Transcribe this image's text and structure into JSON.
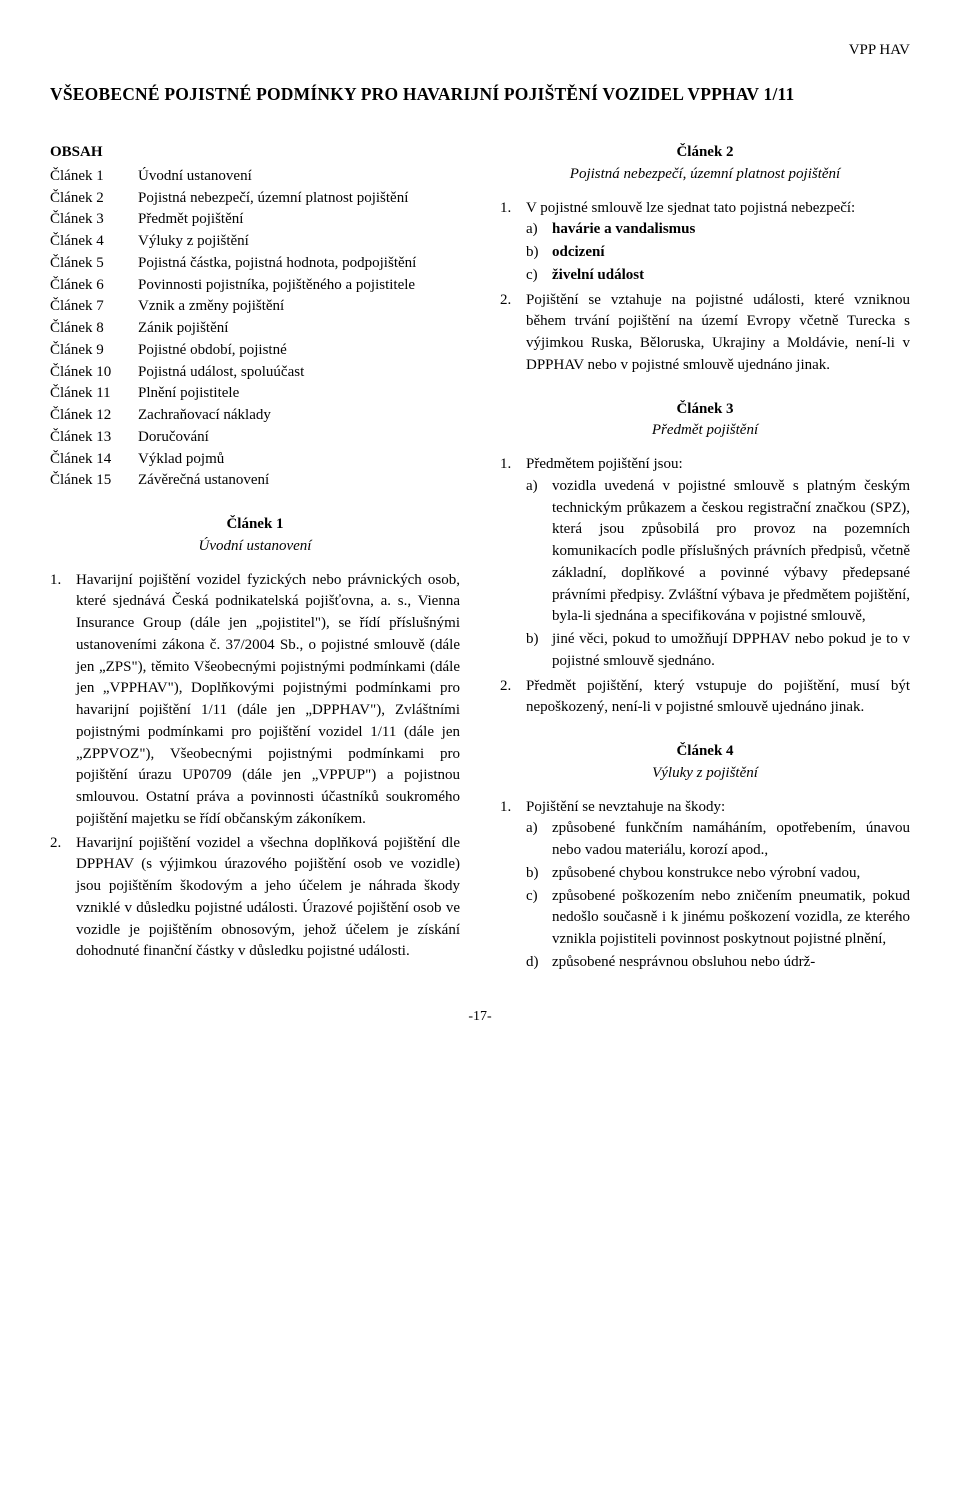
{
  "header": {
    "code": "VPP HAV"
  },
  "title": "VŠEOBECNÉ POJISTNÉ PODMÍNKY PRO HAVARIJNÍ POJIŠTĚNÍ VOZIDEL VPPHAV 1/11",
  "obsah": {
    "heading": "OBSAH",
    "items": [
      {
        "label": "Článek 1",
        "text": "Úvodní ustanovení"
      },
      {
        "label": "Článek 2",
        "text": "Pojistná nebezpečí, územní platnost pojištění"
      },
      {
        "label": "Článek 3",
        "text": "Předmět pojištění"
      },
      {
        "label": "Článek 4",
        "text": "Výluky z pojištění"
      },
      {
        "label": "Článek 5",
        "text": "Pojistná částka, pojistná hodnota, podpojištění"
      },
      {
        "label": "Článek 6",
        "text": "Povinnosti pojistníka, pojištěného a pojistitele"
      },
      {
        "label": "Článek 7",
        "text": "Vznik a změny pojištění"
      },
      {
        "label": "Článek 8",
        "text": "Zánik pojištění"
      },
      {
        "label": "Článek 9",
        "text": "Pojistné období, pojistné"
      },
      {
        "label": "Článek 10",
        "text": "Pojistná událost, spoluúčast"
      },
      {
        "label": "Článek 11",
        "text": "Plnění pojistitele"
      },
      {
        "label": "Článek 12",
        "text": "Zachraňovací náklady"
      },
      {
        "label": "Článek 13",
        "text": "Doručování"
      },
      {
        "label": "Článek 14",
        "text": "Výklad pojmů"
      },
      {
        "label": "Článek 15",
        "text": "Závěrečná ustanovení"
      }
    ]
  },
  "art1": {
    "heading": "Článek 1",
    "sub": "Úvodní ustanovení",
    "p1": {
      "num": "1.",
      "text": "Havarijní pojištění vozidel fyzických nebo právnických osob, které sjednává Česká podnikatelská pojišťovna, a. s., Vienna Insurance Group (dále jen „pojistitel\"), se řídí příslušnými ustanoveními zákona č. 37/2004 Sb., o pojistné smlouvě (dále jen „ZPS\"), těmito Všeobecnými pojistnými podmínkami (dále jen „VPPHAV\"), Doplňkovými pojistnými podmínkami pro havarijní pojištění 1/11 (dále jen „DPPHAV\"), Zvláštními pojistnými podmínkami pro pojištění vozidel 1/11 (dále jen „ZPPVOZ\"), Všeobecnými pojistnými podmínkami pro pojištění úrazu UP0709 (dále jen „VPPUP\") a pojistnou smlouvou. Ostatní práva a povinnosti účastníků soukromého pojištění majetku se řídí občanským zákoníkem."
    },
    "p2": {
      "num": "2.",
      "text": "Havarijní pojištění vozidel a všechna doplňková pojištění dle DPPHAV (s výjimkou úrazového pojištění osob ve vozidle) jsou pojištěním škodovým a jeho účelem je náhrada škody vzniklé v důsledku pojistné události. Úrazové pojištění osob ve vozidle je pojištěním obnosovým, jehož účelem je získání dohodnuté finanční částky v důsledku pojistné události."
    }
  },
  "art2": {
    "heading": "Článek 2",
    "sub": "Pojistná nebezpečí, územní platnost pojištění",
    "p1": {
      "num": "1.",
      "intro": "V pojistné smlouvě lze sjednat tato pojistná nebezpečí:",
      "a": {
        "label": "a)",
        "text": "havárie a vandalismus"
      },
      "b": {
        "label": "b)",
        "text": "odcizení"
      },
      "c": {
        "label": "c)",
        "text": "živelní událost"
      }
    },
    "p2": {
      "num": "2.",
      "text": "Pojištění se vztahuje na pojistné události, které vzniknou během trvání pojištění na území Evropy včetně Turecka s výjimkou Ruska, Běloruska, Ukrajiny a Moldávie, není-li v DPPHAV nebo v pojistné smlouvě ujednáno jinak."
    }
  },
  "art3": {
    "heading": "Článek 3",
    "sub": "Předmět pojištění",
    "p1": {
      "num": "1.",
      "intro": "Předmětem pojištění jsou:",
      "a": {
        "label": "a)",
        "text": "vozidla uvedená v pojistné smlouvě s platným českým technickým průkazem a českou registrační značkou (SPZ), která jsou způsobilá pro provoz na pozemních komunikacích podle příslušných právních předpisů, včetně základní, doplňkové a povinné výbavy předepsané právními předpisy. Zvláštní výbava je předmětem pojištění, byla-li sjednána a specifikována v pojistné smlouvě,"
      },
      "b": {
        "label": "b)",
        "text": "jiné věci, pokud to umožňují DPPHAV nebo pokud je to v pojistné smlouvě sjednáno."
      }
    },
    "p2": {
      "num": "2.",
      "text": "Předmět pojištění, který vstupuje do pojištění, musí být nepoškozený, není-li v pojistné smlouvě ujednáno jinak."
    }
  },
  "art4": {
    "heading": "Článek 4",
    "sub": "Výluky z pojištění",
    "p1": {
      "num": "1.",
      "intro": "Pojištění se nevztahuje na škody:",
      "a": {
        "label": "a)",
        "text": "způsobené funkčním namáháním, opotřebením, únavou nebo vadou materiálu, korozí apod.,"
      },
      "b": {
        "label": "b)",
        "text": "způsobené chybou konstrukce nebo výrobní vadou,"
      },
      "c": {
        "label": "c)",
        "text": "způsobené poškozením nebo zničením pneumatik, pokud nedošlo současně i k jinému poškození vozidla, ze kterého vznikla pojistiteli povinnost poskytnout pojistné plnění,"
      },
      "d": {
        "label": "d)",
        "text": "způsobené nesprávnou obsluhou nebo údrž-"
      }
    }
  },
  "pageNum": "-17-"
}
